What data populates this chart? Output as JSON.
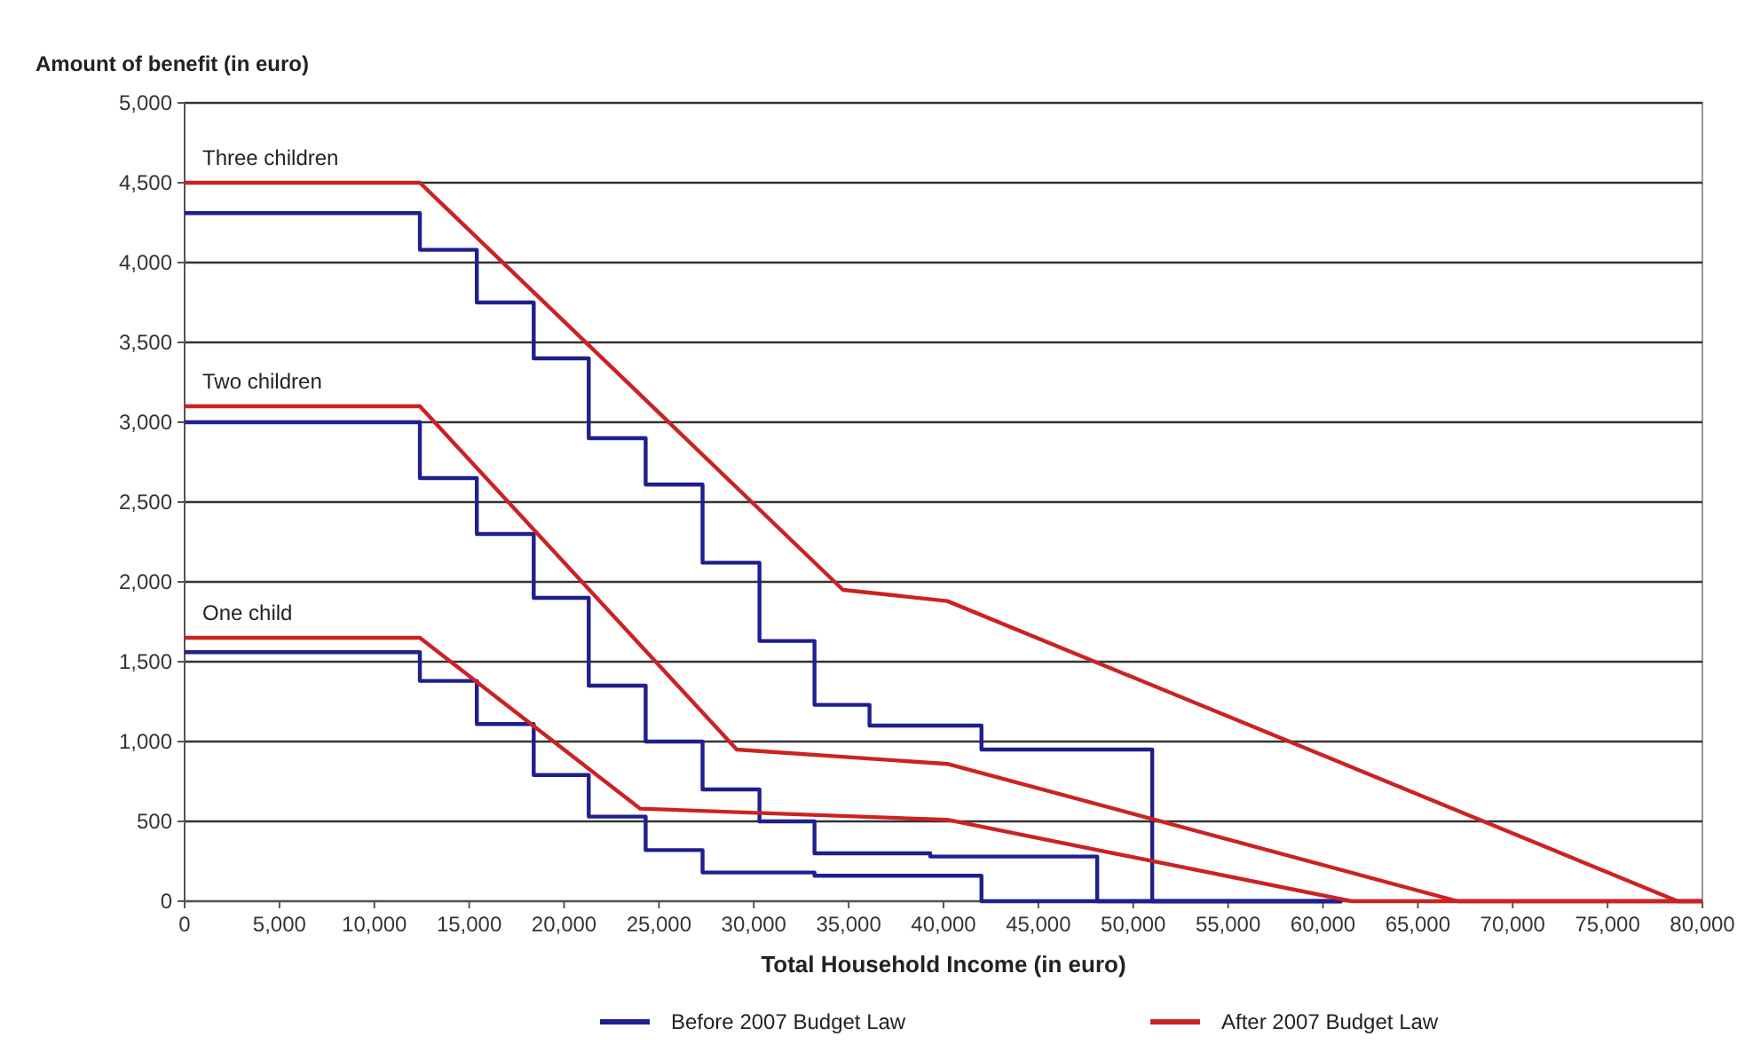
{
  "chart_data": {
    "type": "line",
    "xlabel": "Total Household Income (in euro)",
    "ylabel": "Amount of benefit (in euro)",
    "xlim": [
      0,
      80000
    ],
    "ylim": [
      0,
      5000
    ],
    "xticks": [
      {
        "value": 0,
        "label": "0"
      },
      {
        "value": 5000,
        "label": "5,000"
      },
      {
        "value": 10000,
        "label": "10,000"
      },
      {
        "value": 15000,
        "label": "15,000"
      },
      {
        "value": 20000,
        "label": "20,000"
      },
      {
        "value": 25000,
        "label": "25,000"
      },
      {
        "value": 30000,
        "label": "30,000"
      },
      {
        "value": 35000,
        "label": "35,000"
      },
      {
        "value": 40000,
        "label": "40,000"
      },
      {
        "value": 45000,
        "label": "45,000"
      },
      {
        "value": 50000,
        "label": "50,000"
      },
      {
        "value": 55000,
        "label": "55,000"
      },
      {
        "value": 60000,
        "label": "60,000"
      },
      {
        "value": 65000,
        "label": "65,000"
      },
      {
        "value": 70000,
        "label": "70,000"
      },
      {
        "value": 75000,
        "label": "75,000"
      },
      {
        "value": 80000,
        "label": "80,000"
      }
    ],
    "yticks": [
      {
        "value": 0,
        "label": "0"
      },
      {
        "value": 500,
        "label": "500"
      },
      {
        "value": 1000,
        "label": "1,000"
      },
      {
        "value": 1500,
        "label": "1,500"
      },
      {
        "value": 2000,
        "label": "2,000"
      },
      {
        "value": 2500,
        "label": "2,500"
      },
      {
        "value": 3000,
        "label": "3,000"
      },
      {
        "value": 3500,
        "label": "3,500"
      },
      {
        "value": 4000,
        "label": "4,000"
      },
      {
        "value": 4500,
        "label": "4,500"
      },
      {
        "value": 5000,
        "label": "5,000"
      }
    ],
    "grid": "y",
    "legend": "bottom",
    "marker": "none",
    "line_style": "solid",
    "series": [
      {
        "name": "Before 2007 Budget Law",
        "type": "step",
        "color": "#1f1f8f",
        "x": [
          0,
          12400,
          15400,
          18400,
          21300,
          24300,
          27300,
          30300,
          33200,
          36100,
          42000,
          51000,
          61000
        ],
        "values": [
          4310,
          4080,
          3750,
          3400,
          2900,
          2610,
          2120,
          1630,
          1230,
          1100,
          950,
          0,
          0
        ]
      },
      {
        "type": "step",
        "color": "#1f1f8f",
        "x": [
          0,
          12400,
          15400,
          18400,
          21300,
          24300,
          27300,
          30300,
          33200,
          39300,
          48100,
          61000
        ],
        "values": [
          3000,
          2650,
          2300,
          1900,
          1350,
          1000,
          700,
          500,
          300,
          280,
          0,
          0
        ]
      },
      {
        "type": "step",
        "color": "#1f1f8f",
        "x": [
          0,
          12400,
          15400,
          18400,
          21300,
          24300,
          27300,
          33200,
          42000,
          61000
        ],
        "values": [
          1560,
          1380,
          1110,
          790,
          530,
          320,
          180,
          160,
          0,
          0
        ]
      },
      {
        "name": "After 2007 Budget Law",
        "color": "#cc2222",
        "x": [
          0,
          12400,
          34700,
          40200,
          78700,
          80000
        ],
        "values": [
          4500,
          4500,
          1950,
          1880,
          0,
          0
        ]
      },
      {
        "color": "#cc2222",
        "x": [
          0,
          12400,
          29100,
          40200,
          67100,
          80000
        ],
        "values": [
          3100,
          3100,
          950,
          860,
          0,
          0
        ]
      },
      {
        "color": "#cc2222",
        "x": [
          0,
          12400,
          24000,
          40200,
          61500,
          80000
        ],
        "values": [
          1650,
          1650,
          580,
          510,
          0,
          0
        ]
      }
    ],
    "annotations": [
      "Three children",
      "Two children",
      "One child"
    ]
  }
}
